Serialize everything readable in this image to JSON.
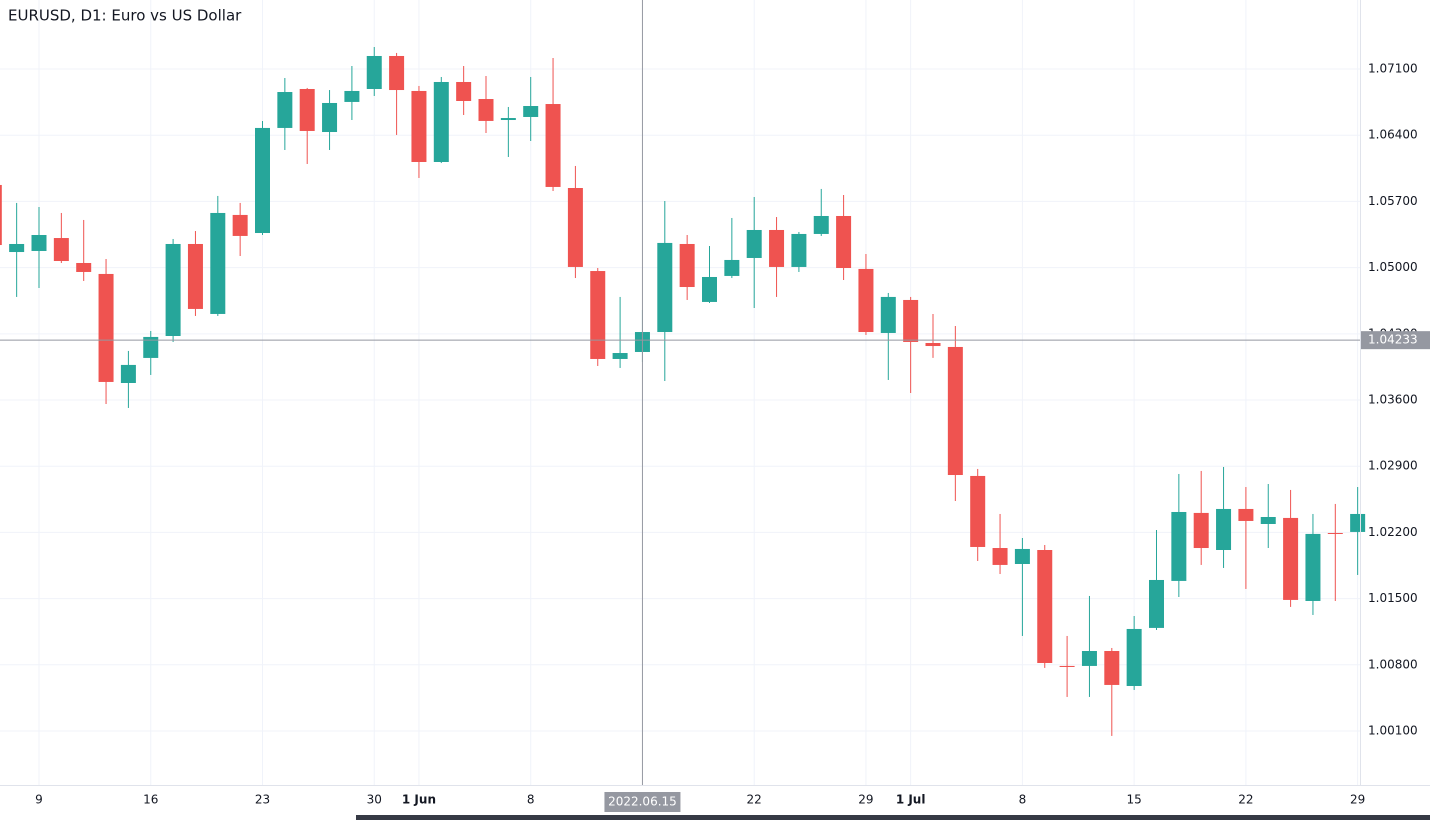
{
  "chart_data": {
    "type": "candlestick",
    "title": "EURUSD, D1: Euro vs US Dollar",
    "categories": [
      null,
      null,
      "9",
      null,
      null,
      null,
      null,
      "16",
      null,
      null,
      null,
      null,
      "23",
      null,
      null,
      null,
      null,
      "30",
      null,
      "1 Jun",
      null,
      null,
      null,
      null,
      "8",
      null,
      null,
      null,
      null,
      "2022.06.15",
      null,
      null,
      null,
      null,
      "22",
      null,
      null,
      null,
      null,
      "29",
      null,
      "1 Jul",
      null,
      null,
      null,
      null,
      "8",
      null,
      null,
      null,
      null,
      "15",
      null,
      null,
      null,
      null,
      "22",
      null,
      null,
      null,
      null,
      "29"
    ],
    "open": [
      1.05874,
      1.05165,
      1.05176,
      1.05313,
      1.05049,
      1.04933,
      1.0378,
      1.04045,
      1.04277,
      1.0525,
      1.0451,
      1.05557,
      1.05366,
      1.06477,
      1.06889,
      1.06434,
      1.06752,
      1.06889,
      1.07238,
      1.06868,
      1.06117,
      1.06963,
      1.06783,
      1.06561,
      1.06593,
      1.0673,
      1.05842,
      1.04964,
      1.04034,
      1.04108,
      1.04319,
      1.0525,
      1.04637,
      1.04912,
      1.05102,
      1.05398,
      1.05007,
      1.05356,
      1.05546,
      1.04986,
      1.04309,
      1.04658,
      1.04203,
      1.04161,
      1.02797,
      1.02035,
      1.01866,
      1.02014,
      1.00788,
      1.00788,
      1.00946,
      1.00576,
      1.0119,
      1.01687,
      1.02406,
      1.02014,
      1.02448,
      1.02289,
      1.02353,
      1.01475,
      1.02194,
      1.02205
    ],
    "high": [
      1.05906,
      1.05684,
      1.05641,
      1.05578,
      1.05504,
      1.05091,
      1.04119,
      1.0433,
      1.05303,
      1.05387,
      1.05758,
      1.05684,
      1.06551,
      1.07005,
      1.069,
      1.06878,
      1.07132,
      1.07333,
      1.0727,
      1.06921,
      1.07016,
      1.07132,
      1.07026,
      1.06699,
      1.07016,
      1.07217,
      1.06075,
      1.04996,
      1.0469,
      1.04552,
      1.05705,
      1.05345,
      1.05229,
      1.05525,
      1.05747,
      1.05535,
      1.05377,
      1.05832,
      1.05768,
      1.05144,
      1.04732,
      1.0469,
      1.0451,
      1.04383,
      1.02871,
      1.02395,
      1.02141,
      1.02067,
      1.01105,
      1.01528,
      1.00978,
      1.01316,
      1.02226,
      1.02818,
      1.0285,
      1.02892,
      1.0268,
      1.02712,
      1.02649,
      1.02395,
      1.02501,
      1.0268
    ],
    "low": [
      1.0506,
      1.0469,
      1.04785,
      1.05049,
      1.04859,
      1.03558,
      1.03516,
      1.03865,
      1.04214,
      1.04489,
      1.04489,
      1.05123,
      1.05345,
      1.06244,
      1.06096,
      1.06244,
      1.06561,
      1.06815,
      1.06403,
      1.05948,
      1.06106,
      1.06614,
      1.06424,
      1.0617,
      1.06339,
      1.0581,
      1.0489,
      1.0396,
      1.03939,
      1.04002,
      1.03801,
      1.04658,
      1.04626,
      1.0489,
      1.04573,
      1.0469,
      1.04954,
      1.05335,
      1.04869,
      1.04288,
      1.03812,
      1.03674,
      1.04045,
      1.02532,
      1.01898,
      1.0176,
      1.01105,
      1.00767,
      1.0046,
      1.0046,
      1.00048,
      1.00534,
      1.01168,
      1.01517,
      1.01856,
      1.01824,
      1.01602,
      1.02035,
      1.01412,
      1.01327,
      1.01475,
      1.0175
    ],
    "close": [
      1.05239,
      1.0525,
      1.05345,
      1.0507,
      1.04954,
      1.03791,
      1.03971,
      1.04267,
      1.0525,
      1.04563,
      1.05578,
      1.05335,
      1.06477,
      1.06857,
      1.06445,
      1.06741,
      1.06868,
      1.07238,
      1.06878,
      1.06117,
      1.06963,
      1.06762,
      1.06551,
      1.06582,
      1.06709,
      1.05853,
      1.05007,
      1.04034,
      1.04097,
      1.04319,
      1.05261,
      1.04795,
      1.04901,
      1.05081,
      1.05398,
      1.05007,
      1.05356,
      1.05546,
      1.04996,
      1.04319,
      1.0469,
      1.04214,
      1.04171,
      1.02807,
      1.02046,
      1.01856,
      1.02025,
      1.00819,
      1.00777,
      1.00946,
      1.00587,
      1.01179,
      1.01697,
      1.02416,
      1.02035,
      1.02448,
      1.02321,
      1.02363,
      1.01486,
      1.02184,
      1.02184,
      1.02395
    ],
    "up_color": "#26a69a",
    "down_color": "#ef5350",
    "ylim": [
      0.99529,
      1.0783
    ],
    "yticks": [
      {
        "value": 1.001,
        "label": "1.00100"
      },
      {
        "value": 1.008,
        "label": "1.00800"
      },
      {
        "value": 1.015,
        "label": "1.01500"
      },
      {
        "value": 1.022,
        "label": "1.02200"
      },
      {
        "value": 1.029,
        "label": "1.02900"
      },
      {
        "value": 1.036,
        "label": "1.03600"
      },
      {
        "value": 1.043,
        "label": "1.04300"
      },
      {
        "value": 1.05,
        "label": "1.05000"
      },
      {
        "value": 1.057,
        "label": "1.05700"
      },
      {
        "value": 1.064,
        "label": "1.06400"
      },
      {
        "value": 1.071,
        "label": "1.07100"
      }
    ],
    "crosshair": {
      "x": "2022.06.15",
      "y": 1.04233
    },
    "grid": true
  }
}
